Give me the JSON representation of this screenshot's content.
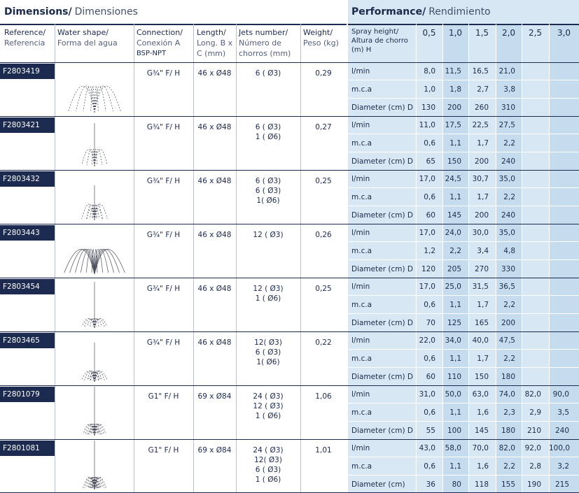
{
  "sections": {
    "dimensions": {
      "en": "Dimensions/",
      "es": "Dimensiones"
    },
    "performance": {
      "en": "Performance/",
      "es": "Rendimiento"
    }
  },
  "headers": {
    "reference": {
      "en": "Reference/",
      "es": "Referencia"
    },
    "water_shape": {
      "en": "Water shape/",
      "es": "Forma del agua"
    },
    "connection": {
      "en": "Connection/",
      "es": "Conexión  A",
      "extra": "BSP-NPT"
    },
    "length": {
      "en": "Length/",
      "es": "Long.  B x",
      "extra": "C (mm)"
    },
    "jets": {
      "en": "Jets number/",
      "es": "Número de",
      "extra": "chorros  (mm)"
    },
    "weight": {
      "en": "Weight/",
      "es": "Peso  (kg)"
    },
    "spray": {
      "en": "Spray height/",
      "es": "Altura de chorro",
      "extra": "(m) H"
    }
  },
  "heights": [
    "0,5",
    "1,0",
    "1,5",
    "2,0",
    "2,5",
    "3,0"
  ],
  "row_labels": {
    "flow": "l/min",
    "pressure": "m.c.a",
    "diameter": "Diameter (cm) D",
    "diameter_last": "Diameter (cm)"
  },
  "products": [
    {
      "ref": "F2803419",
      "connection": "G¾\" F/ H",
      "length": "46 x Ø48",
      "jets": [
        "6 ( Ø3)"
      ],
      "weight": "0,29",
      "shape": "wide",
      "flow": [
        "8,0",
        "11,5",
        "16,5",
        "21,0",
        "",
        ""
      ],
      "pressure": [
        "1,0",
        "1,8",
        "2,7",
        "3,8",
        "",
        ""
      ],
      "diameter": [
        "130",
        "200",
        "260",
        "310",
        "",
        ""
      ]
    },
    {
      "ref": "F2803421",
      "connection": "G¾\" F/ H",
      "length": "46 x Ø48",
      "jets": [
        "6 ( Ø3)",
        "1 ( Ø6)"
      ],
      "weight": "0,27",
      "shape": "arch-center",
      "flow": [
        "11,0",
        "17,5",
        "22,5",
        "27,5",
        "",
        ""
      ],
      "pressure": [
        "0,6",
        "1,1",
        "1,7",
        "2,2",
        "",
        ""
      ],
      "diameter": [
        "65",
        "150",
        "200",
        "240",
        "",
        ""
      ]
    },
    {
      "ref": "F2803432",
      "connection": "G¾\" F/ H",
      "length": "46 x Ø48",
      "jets": [
        "6 ( Ø3)",
        "6 ( Ø3)",
        "1( Ø6)"
      ],
      "weight": "0,25",
      "shape": "double-arch",
      "flow": [
        "17,0",
        "24,5",
        "30,7",
        "35,0",
        "",
        ""
      ],
      "pressure": [
        "0,6",
        "1,1",
        "1,7",
        "2,2",
        "",
        ""
      ],
      "diameter": [
        "60",
        "145",
        "200",
        "240",
        "",
        ""
      ]
    },
    {
      "ref": "F2803443",
      "connection": "G¾\" F/ H",
      "length": "46 x Ø48",
      "jets": [
        "12 ( Ø3)"
      ],
      "weight": "0,26",
      "shape": "wide-dense",
      "flow": [
        "17,0",
        "24,0",
        "30,0",
        "35,0",
        "",
        ""
      ],
      "pressure": [
        "1,2",
        "2,2",
        "3,4",
        "4,8",
        "",
        ""
      ],
      "diameter": [
        "120",
        "205",
        "270",
        "330",
        "",
        ""
      ]
    },
    {
      "ref": "F2803454",
      "connection": "G¾\" F/ H",
      "length": "46 x Ø48",
      "jets": [
        "12 ( Ø3)",
        "1 ( Ø6)"
      ],
      "weight": "0,25",
      "shape": "tall-center",
      "flow": [
        "17,0",
        "25,0",
        "31,5",
        "36,5",
        "",
        ""
      ],
      "pressure": [
        "0,6",
        "1,1",
        "1,7",
        "2,2",
        "",
        ""
      ],
      "diameter": [
        "70",
        "125",
        "165",
        "200",
        "",
        ""
      ]
    },
    {
      "ref": "F2803465",
      "connection": "G¾\" F/ H",
      "length": "46 x Ø48",
      "jets": [
        "12( Ø3)",
        "6 ( Ø3)",
        "1( Ø6)"
      ],
      "weight": "0,22",
      "shape": "tiered",
      "flow": [
        "22,0",
        "34,0",
        "40,0",
        "47,5",
        "",
        ""
      ],
      "pressure": [
        "0,6",
        "1,1",
        "1,7",
        "2,2",
        "",
        ""
      ],
      "diameter": [
        "60",
        "110",
        "150",
        "180",
        "",
        ""
      ]
    },
    {
      "ref": "F2801079",
      "connection": "G1\" F/ H",
      "length": "69 x Ø84",
      "jets": [
        "24 ( Ø3)",
        "12 ( Ø3)",
        "1 ( Ø6)"
      ],
      "weight": "1,06",
      "shape": "tall-tiered",
      "flow": [
        "31,0",
        "50,0",
        "63,0",
        "74,0",
        "82,0",
        "90,0"
      ],
      "pressure": [
        "0,6",
        "1,1",
        "1,6",
        "2,3",
        "2,9",
        "3,5"
      ],
      "diameter": [
        "55",
        "100",
        "145",
        "180",
        "210",
        "240"
      ]
    },
    {
      "ref": "F2801081",
      "connection": "G1\" F/ H",
      "length": "69 x Ø84",
      "jets": [
        "24 ( Ø3)",
        "12( Ø3)",
        "6 ( Ø3)",
        "1 ( Ø6)"
      ],
      "weight": "1,01",
      "shape": "tall-tiered-dense",
      "flow": [
        "43,0",
        "58,0",
        "70,0",
        "82,0",
        "92,0",
        "100,0"
      ],
      "pressure": [
        "0,6",
        "1,1",
        "1,6",
        "2,2",
        "2,8",
        "3,2"
      ],
      "diameter": [
        "36",
        "80",
        "118",
        "155",
        "190",
        "215"
      ]
    }
  ]
}
